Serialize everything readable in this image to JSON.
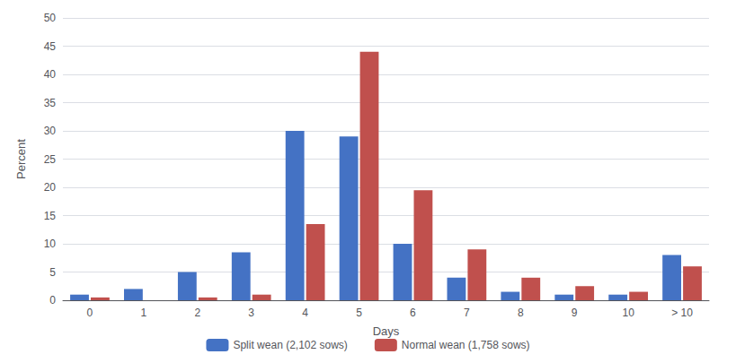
{
  "chart_data": {
    "type": "bar",
    "categories": [
      "0",
      "1",
      "2",
      "3",
      "4",
      "5",
      "6",
      "7",
      "8",
      "9",
      "10",
      "> 10"
    ],
    "series": [
      {
        "name": "Split wean (2,102 sows)",
        "color": "#4472C4",
        "values": [
          1.0,
          2.0,
          5.0,
          8.5,
          30.0,
          29.0,
          10.0,
          4.0,
          1.5,
          1.0,
          1.0,
          8.0
        ]
      },
      {
        "name": "Normal wean (1,758 sows)",
        "color": "#C0504D",
        "values": [
          0.5,
          0.0,
          0.5,
          1.0,
          13.5,
          44.0,
          19.5,
          9.0,
          4.0,
          2.5,
          1.5,
          6.0
        ]
      }
    ],
    "xlabel": "Days",
    "ylabel": "Percent",
    "ylim": [
      0,
      50
    ],
    "yticks": [
      0,
      5,
      10,
      15,
      20,
      25,
      30,
      35,
      40,
      45,
      50
    ],
    "grid": true,
    "legend": "bottom"
  }
}
